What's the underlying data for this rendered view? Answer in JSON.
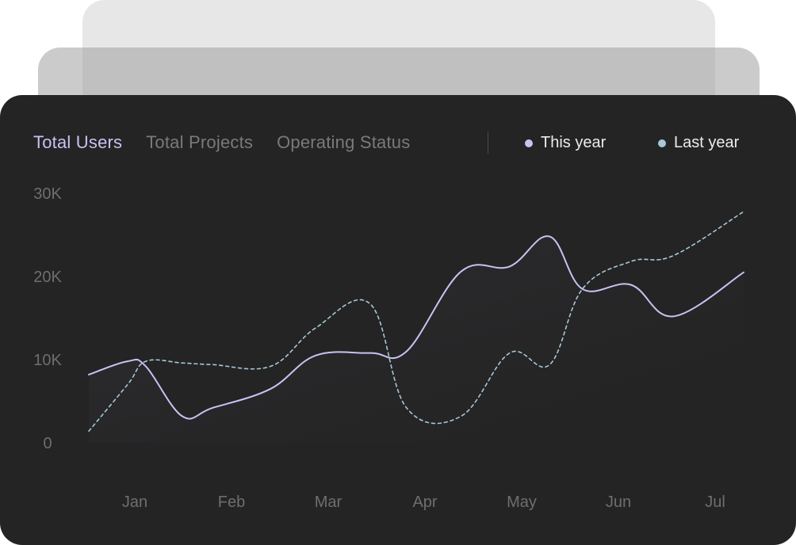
{
  "tabs": [
    {
      "label": "Total Users",
      "active": true
    },
    {
      "label": "Total Projects",
      "active": false
    },
    {
      "label": "Operating Status",
      "active": false
    }
  ],
  "legend": [
    {
      "label": "This year",
      "color": "#c9c2f3"
    },
    {
      "label": "Last year",
      "color": "#a7c8d6"
    }
  ],
  "chart_data": {
    "type": "line",
    "x": [
      0.48,
      0.8,
      0.95,
      1.25,
      1.5,
      1.98,
      2.35,
      2.8,
      3.1,
      3.55,
      3.95,
      4.28,
      4.55,
      4.95,
      5.3,
      5.88
    ],
    "categories": [
      "Jan",
      "Feb",
      "Mar",
      "Apr",
      "May",
      "Jun",
      "Jul"
    ],
    "yticks": [
      "0",
      "10K",
      "20K",
      "30K"
    ],
    "ylim": [
      0,
      30000
    ],
    "grid": false,
    "series": [
      {
        "name": "This year",
        "color": "#c9c2f3",
        "style": "solid",
        "values": [
          8200,
          9800,
          9200,
          3200,
          4200,
          6500,
          10500,
          10800,
          11000,
          20600,
          21200,
          24800,
          18500,
          19000,
          15200,
          20500
        ]
      },
      {
        "name": "Last year",
        "color": "#a7c8d6",
        "style": "dashed",
        "values": [
          1400,
          7000,
          9800,
          9600,
          9400,
          9200,
          13800,
          16700,
          4200,
          3200,
          10800,
          9400,
          18500,
          21800,
          22500,
          27800
        ]
      }
    ]
  }
}
